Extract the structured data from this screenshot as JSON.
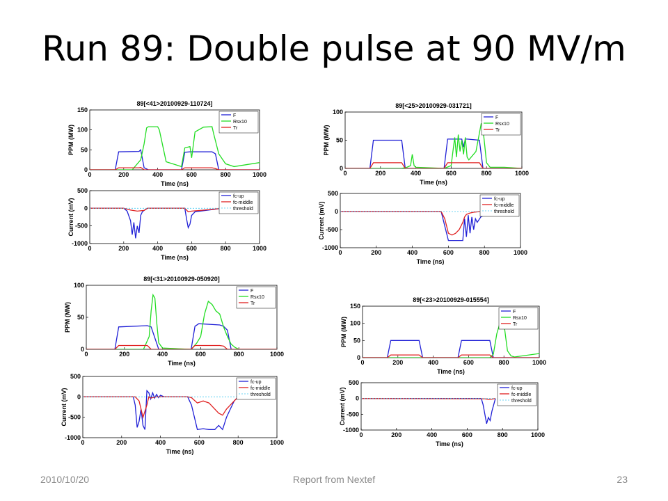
{
  "slide": {
    "title": "Run 89: Double pulse at 90 MV/m",
    "footer_date": "2010/10/20",
    "footer_center": "Report from Nextef",
    "page_number": "23"
  },
  "colors": {
    "F": "#1f1fd6",
    "Rsx10": "#22dd22",
    "Tr": "#e02020",
    "fc-up": "#1f1fd6",
    "fc-middle": "#e02020",
    "threshold": "#40c8f0"
  },
  "chart_data": [
    {
      "type": "line",
      "title": "89[<41>20100929-110724]",
      "xlabel": "Time (ns)",
      "ylabel": "PPM (MW)",
      "xlim": [
        0,
        1000
      ],
      "ylim": [
        0,
        150
      ],
      "xticks": [
        0,
        200,
        400,
        600,
        800,
        1000
      ],
      "yticks": [
        0,
        50,
        100,
        150
      ],
      "legend": [
        "F",
        "Rsx10",
        "Tr"
      ],
      "legend_position": "top-right",
      "series": [
        {
          "name": "F",
          "x": [
            0,
            150,
            170,
            290,
            300,
            320,
            345,
            540,
            560,
            590,
            720,
            740,
            760,
            1000
          ],
          "y": [
            0,
            0,
            45,
            46,
            50,
            5,
            0,
            0,
            44,
            45,
            45,
            40,
            0,
            0
          ]
        },
        {
          "name": "Rsx10",
          "x": [
            0,
            250,
            300,
            320,
            335,
            345,
            400,
            410,
            450,
            540,
            560,
            590,
            600,
            620,
            670,
            720,
            730,
            760,
            800,
            850,
            1000
          ],
          "y": [
            0,
            0,
            25,
            65,
            105,
            108,
            108,
            100,
            20,
            8,
            55,
            58,
            30,
            95,
            107,
            108,
            90,
            40,
            15,
            8,
            18
          ]
        },
        {
          "name": "Tr",
          "x": [
            0,
            150,
            170,
            290,
            300,
            320,
            540,
            560,
            590,
            720,
            740,
            760,
            1000
          ],
          "y": [
            0,
            0,
            5,
            5,
            6,
            0,
            0,
            5,
            5,
            5,
            3,
            0,
            0
          ]
        }
      ]
    },
    {
      "type": "line",
      "title": "",
      "xlabel": "Time (ns)",
      "ylabel": "Current (mV)",
      "xlim": [
        0,
        1000
      ],
      "ylim": [
        -1000,
        500
      ],
      "xticks": [
        0,
        200,
        400,
        600,
        800,
        1000
      ],
      "yticks": [
        -1000,
        -500,
        0,
        500
      ],
      "legend": [
        "fc-up",
        "fc-middle",
        "threshold"
      ],
      "legend_position": "top-right",
      "series": [
        {
          "name": "fc-up",
          "x": [
            0,
            200,
            220,
            240,
            250,
            260,
            270,
            280,
            290,
            300,
            310,
            320,
            340,
            560,
            570,
            580,
            590,
            600,
            620,
            700,
            780
          ],
          "y": [
            0,
            0,
            -80,
            -350,
            -750,
            -400,
            -850,
            -500,
            -700,
            -200,
            -100,
            -60,
            0,
            0,
            -300,
            -550,
            -450,
            -200,
            -100,
            -50,
            0
          ]
        },
        {
          "name": "fc-middle",
          "x": [
            0,
            200,
            240,
            280,
            320,
            340,
            560,
            580,
            600,
            700,
            780
          ],
          "y": [
            0,
            0,
            -50,
            -80,
            -60,
            0,
            0,
            -100,
            -80,
            -40,
            0
          ]
        },
        {
          "name": "threshold",
          "x": [
            0,
            780
          ],
          "y": [
            0,
            0
          ]
        }
      ]
    },
    {
      "type": "line",
      "title": "89[<25>20100929-031721]",
      "xlabel": "Time (ns)",
      "ylabel": "PPM (MW)",
      "xlim": [
        0,
        1000
      ],
      "ylim": [
        0,
        100
      ],
      "xticks": [
        0,
        200,
        400,
        600,
        800,
        1000
      ],
      "yticks": [
        0,
        50,
        100
      ],
      "legend": [
        "F",
        "Rsx10",
        "Tr"
      ],
      "legend_position": "top-right",
      "series": [
        {
          "name": "F",
          "x": [
            0,
            140,
            160,
            320,
            340,
            560,
            580,
            660,
            670,
            680,
            690,
            760,
            780,
            1000
          ],
          "y": [
            0,
            0,
            50,
            50,
            0,
            0,
            52,
            52,
            38,
            52,
            52,
            50,
            0,
            0
          ]
        },
        {
          "name": "Rsx10",
          "x": [
            0,
            320,
            350,
            370,
            380,
            390,
            400,
            560,
            600,
            610,
            620,
            630,
            640,
            650,
            660,
            670,
            680,
            690,
            700,
            740,
            770,
            780,
            790,
            800,
            820,
            900,
            1000
          ],
          "y": [
            0,
            0,
            2,
            5,
            25,
            5,
            2,
            0,
            5,
            30,
            55,
            20,
            60,
            30,
            50,
            25,
            55,
            20,
            15,
            30,
            80,
            70,
            40,
            10,
            2,
            2,
            0
          ]
        },
        {
          "name": "Tr",
          "x": [
            0,
            140,
            160,
            320,
            340,
            560,
            580,
            760,
            780,
            1000
          ],
          "y": [
            0,
            0,
            10,
            10,
            0,
            0,
            10,
            10,
            0,
            0
          ]
        }
      ]
    },
    {
      "type": "line",
      "title": "",
      "xlabel": "Time (ns)",
      "ylabel": "Current (mV)",
      "xlim": [
        0,
        1000
      ],
      "ylim": [
        -1000,
        500
      ],
      "xticks": [
        0,
        200,
        400,
        600,
        800,
        1000
      ],
      "yticks": [
        -1000,
        -500,
        0,
        500
      ],
      "legend": [
        "fc-up",
        "fc-middle",
        "threshold"
      ],
      "legend_position": "top-right",
      "series": [
        {
          "name": "fc-up",
          "x": [
            0,
            560,
            580,
            600,
            620,
            640,
            660,
            680,
            690,
            700,
            710,
            720,
            730,
            740,
            750,
            760,
            780,
            800,
            820
          ],
          "y": [
            0,
            0,
            -400,
            -800,
            -800,
            -800,
            -800,
            -800,
            -200,
            -700,
            -100,
            -600,
            -150,
            -500,
            -200,
            -300,
            -150,
            -100,
            0
          ]
        },
        {
          "name": "fc-middle",
          "x": [
            0,
            560,
            580,
            600,
            620,
            640,
            660,
            680,
            690,
            700,
            720,
            740,
            780
          ],
          "y": [
            0,
            0,
            -200,
            -600,
            -650,
            -600,
            -500,
            -300,
            -150,
            -80,
            -40,
            -20,
            0
          ]
        },
        {
          "name": "threshold",
          "x": [
            0,
            820
          ],
          "y": [
            0,
            0
          ]
        }
      ]
    },
    {
      "type": "line",
      "title": "89[<31>20100929-050920]",
      "xlabel": "Time (ns)",
      "ylabel": "PPM (MW)",
      "xlim": [
        0,
        1000
      ],
      "ylim": [
        0,
        100
      ],
      "xticks": [
        0,
        200,
        400,
        600,
        800,
        1000
      ],
      "yticks": [
        0,
        50,
        100
      ],
      "legend": [
        "F",
        "Rsx10",
        "Tr"
      ],
      "legend_position": "top-right",
      "series": [
        {
          "name": "F",
          "x": [
            0,
            150,
            170,
            320,
            340,
            380,
            550,
            570,
            590,
            700,
            720,
            740,
            760,
            1000
          ],
          "y": [
            0,
            0,
            35,
            37,
            35,
            0,
            0,
            36,
            40,
            38,
            36,
            30,
            0,
            0
          ]
        },
        {
          "name": "Rsx10",
          "x": [
            0,
            300,
            330,
            340,
            350,
            360,
            370,
            380,
            400,
            550,
            580,
            600,
            620,
            640,
            660,
            680,
            700,
            720,
            740,
            760,
            780,
            800,
            1000
          ],
          "y": [
            0,
            0,
            20,
            60,
            85,
            80,
            40,
            10,
            2,
            0,
            10,
            20,
            55,
            75,
            70,
            60,
            55,
            35,
            20,
            8,
            3,
            0,
            0
          ]
        },
        {
          "name": "Tr",
          "x": [
            0,
            150,
            170,
            320,
            340,
            550,
            570,
            700,
            720,
            740,
            1000
          ],
          "y": [
            0,
            0,
            6,
            6,
            0,
            0,
            6,
            6,
            5,
            0,
            0
          ]
        }
      ]
    },
    {
      "type": "line",
      "title": "",
      "xlabel": "Time (ns)",
      "ylabel": "Current (mV)",
      "xlim": [
        0,
        1000
      ],
      "ylim": [
        -1000,
        500
      ],
      "xticks": [
        0,
        200,
        400,
        600,
        800,
        1000
      ],
      "yticks": [
        -1000,
        -500,
        0,
        500
      ],
      "legend": [
        "fc-up",
        "fc-middle",
        "threshold"
      ],
      "legend_position": "top-right",
      "series": [
        {
          "name": "fc-up",
          "x": [
            0,
            260,
            270,
            280,
            290,
            300,
            310,
            320,
            330,
            340,
            350,
            360,
            370,
            380,
            390,
            400,
            420,
            540,
            560,
            580,
            590,
            620,
            650,
            680,
            700,
            720,
            740,
            760,
            780,
            800
          ],
          "y": [
            0,
            0,
            -200,
            -750,
            -600,
            -300,
            -700,
            -800,
            150,
            100,
            -50,
            100,
            -30,
            60,
            -20,
            40,
            0,
            0,
            -200,
            -600,
            -800,
            -780,
            -800,
            -800,
            -700,
            -800,
            -500,
            -300,
            -100,
            0
          ]
        },
        {
          "name": "fc-middle",
          "x": [
            0,
            270,
            290,
            310,
            330,
            340,
            350,
            380,
            540,
            560,
            590,
            620,
            650,
            680,
            700,
            720,
            740,
            760,
            800
          ],
          "y": [
            0,
            0,
            -100,
            -500,
            -200,
            0,
            -30,
            0,
            0,
            -20,
            -150,
            -100,
            -150,
            -300,
            -400,
            -450,
            -300,
            -200,
            0
          ]
        },
        {
          "name": "threshold",
          "x": [
            0,
            800
          ],
          "y": [
            0,
            0
          ]
        }
      ]
    },
    {
      "type": "line",
      "title": "89[<23>20100929-015554]",
      "xlabel": "Time (ns)",
      "ylabel": "PPM (MW)",
      "xlim": [
        0,
        1000
      ],
      "ylim": [
        0,
        150
      ],
      "xticks": [
        0,
        200,
        400,
        600,
        800,
        1000
      ],
      "yticks": [
        0,
        50,
        100,
        150
      ],
      "legend": [
        "F",
        "Rsx10",
        "Tr"
      ],
      "legend_position": "top-right",
      "series": [
        {
          "name": "F",
          "x": [
            0,
            140,
            160,
            320,
            340,
            540,
            560,
            720,
            740,
            1000
          ],
          "y": [
            0,
            0,
            50,
            50,
            0,
            0,
            50,
            50,
            0,
            0
          ]
        },
        {
          "name": "Rsx10",
          "x": [
            0,
            720,
            740,
            760,
            780,
            790,
            800,
            810,
            820,
            840,
            860,
            1000
          ],
          "y": [
            0,
            0,
            10,
            70,
            105,
            110,
            100,
            60,
            20,
            5,
            2,
            12
          ]
        },
        {
          "name": "Tr",
          "x": [
            0,
            140,
            160,
            320,
            340,
            540,
            560,
            720,
            740,
            1000
          ],
          "y": [
            0,
            0,
            8,
            8,
            0,
            0,
            8,
            8,
            0,
            0
          ]
        }
      ]
    },
    {
      "type": "line",
      "title": "",
      "xlabel": "Time (ns)",
      "ylabel": "Current (mV)",
      "xlim": [
        0,
        1000
      ],
      "ylim": [
        -1000,
        500
      ],
      "xticks": [
        0,
        200,
        400,
        600,
        800,
        1000
      ],
      "yticks": [
        -1000,
        -500,
        0,
        500
      ],
      "legend": [
        "fc-up",
        "fc-middle",
        "threshold"
      ],
      "legend_position": "top-right",
      "series": [
        {
          "name": "fc-up",
          "x": [
            0,
            680,
            690,
            700,
            710,
            720,
            730,
            740,
            750,
            760
          ],
          "y": [
            0,
            0,
            -200,
            -500,
            -800,
            -600,
            -700,
            -400,
            -200,
            0
          ]
        },
        {
          "name": "fc-middle",
          "x": [
            0,
            700,
            720,
            740,
            760
          ],
          "y": [
            0,
            -10,
            -30,
            -20,
            0
          ]
        },
        {
          "name": "threshold",
          "x": [
            0,
            760
          ],
          "y": [
            0,
            0
          ]
        }
      ]
    }
  ]
}
